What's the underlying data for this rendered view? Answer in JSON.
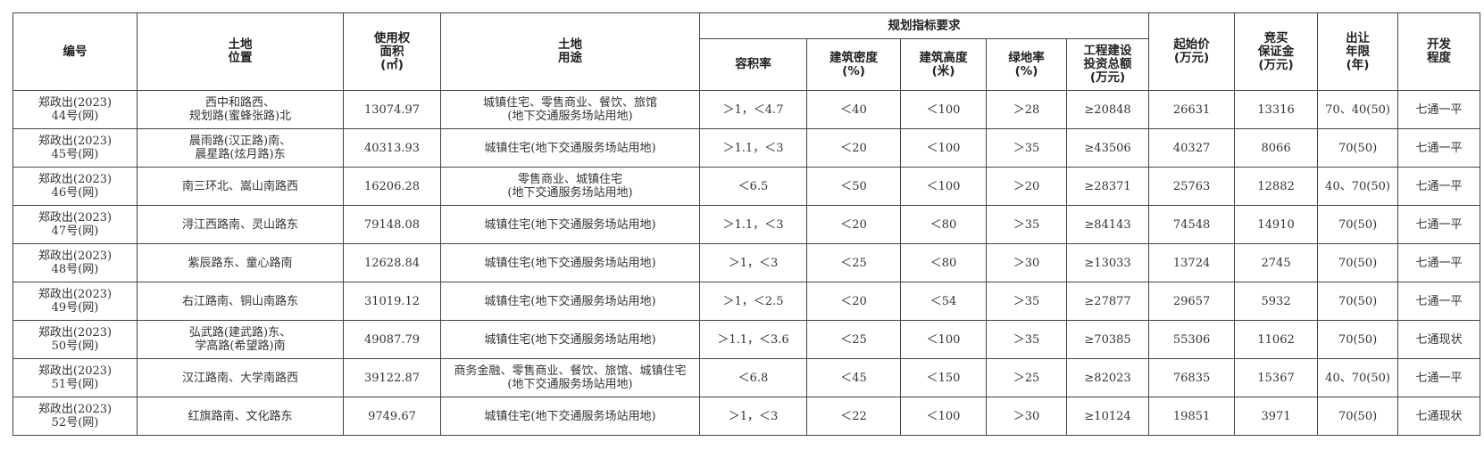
{
  "headers": {
    "id": "编号",
    "location": "土地\n位置",
    "area": "使用权\n面积\n(㎡)",
    "use": "土地\n用途",
    "planning": "规划指标要求",
    "far": "容积率",
    "density": "建筑密度\n(%)",
    "height": "建筑高度\n(米)",
    "green": "绿地率\n(%)",
    "investment": "工程建设\n投资总额\n(万元)",
    "start_price": "起始价\n(万元)",
    "deposit": "竞买\n保证金\n(万元)",
    "term": "出让\n年限\n(年)",
    "development": "开发\n程度"
  },
  "rows": [
    {
      "id": "郑政出(2023)\n44号(网)",
      "location": "西中和路西、\n规划路(蜜蜂张路)北",
      "area": "13074.97",
      "use": "城镇住宅、零售商业、餐饮、旅馆\n(地下交通服务场站用地)",
      "far": "＞1，＜4.7",
      "density": "＜40",
      "height": "＜100",
      "green": "＞28",
      "investment": "≥20848",
      "start_price": "26631",
      "deposit": "13316",
      "term": "70、40(50)",
      "development": "七通一平"
    },
    {
      "id": "郑政出(2023)\n45号(网)",
      "location": "晨雨路(汉正路)南、\n晨星路(炫月路)东",
      "area": "40313.93",
      "use": "城镇住宅(地下交通服务场站用地)",
      "far": "＞1.1，＜3",
      "density": "＜20",
      "height": "＜100",
      "green": "＞35",
      "investment": "≥43506",
      "start_price": "40327",
      "deposit": "8066",
      "term": "70(50)",
      "development": "七通一平"
    },
    {
      "id": "郑政出(2023)\n46号(网)",
      "location": "南三环北、嵩山南路西",
      "area": "16206.28",
      "use": "零售商业、城镇住宅\n(地下交通服务场站用地)",
      "far": "＜6.5",
      "density": "＜50",
      "height": "＜100",
      "green": "＞20",
      "investment": "≥28371",
      "start_price": "25763",
      "deposit": "12882",
      "term": "40、70(50)",
      "development": "七通一平"
    },
    {
      "id": "郑政出(2023)\n47号(网)",
      "location": "浔江西路南、灵山路东",
      "area": "79148.08",
      "use": "城镇住宅(地下交通服务场站用地)",
      "far": "＞1.1，＜3",
      "density": "＜20",
      "height": "＜80",
      "green": "＞35",
      "investment": "≥84143",
      "start_price": "74548",
      "deposit": "14910",
      "term": "70(50)",
      "development": "七通一平"
    },
    {
      "id": "郑政出(2023)\n48号(网)",
      "location": "紫辰路东、童心路南",
      "area": "12628.84",
      "use": "城镇住宅(地下交通服务场站用地)",
      "far": "＞1，＜3",
      "density": "＜25",
      "height": "＜80",
      "green": "＞30",
      "investment": "≥13033",
      "start_price": "13724",
      "deposit": "2745",
      "term": "70(50)",
      "development": "七通一平"
    },
    {
      "id": "郑政出(2023)\n49号(网)",
      "location": "右江路南、铜山南路东",
      "area": "31019.12",
      "use": "城镇住宅(地下交通服务场站用地)",
      "far": "＞1，＜2.5",
      "density": "＜20",
      "height": "＜54",
      "green": "＞35",
      "investment": "≥27877",
      "start_price": "29657",
      "deposit": "5932",
      "term": "70(50)",
      "development": "七通一平"
    },
    {
      "id": "郑政出(2023)\n50号(网)",
      "location": "弘武路(建武路)东、\n学高路(希望路)南",
      "area": "49087.79",
      "use": "城镇住宅(地下交通服务场站用地)",
      "far": "＞1.1，＜3.6",
      "density": "＜25",
      "height": "＜100",
      "green": "＞35",
      "investment": "≥70385",
      "start_price": "55306",
      "deposit": "11062",
      "term": "70(50)",
      "development": "七通现状"
    },
    {
      "id": "郑政出(2023)\n51号(网)",
      "location": "汉江路南、大学南路西",
      "area": "39122.87",
      "use": "商务金融、零售商业、餐饮、旅馆、城镇住宅\n(地下交通服务场站用地)",
      "far": "＜6.8",
      "density": "＜45",
      "height": "＜150",
      "green": "＞25",
      "investment": "≥82023",
      "start_price": "76835",
      "deposit": "15367",
      "term": "40、70(50)",
      "development": "七通一平"
    },
    {
      "id": "郑政出(2023)\n52号(网)",
      "location": "红旗路南、文化路东",
      "area": "9749.67",
      "use": "城镇住宅(地下交通服务场站用地)",
      "far": "＞1，＜3",
      "density": "＜22",
      "height": "＜100",
      "green": "＞30",
      "investment": "≥10124",
      "start_price": "19851",
      "deposit": "3971",
      "term": "70(50)",
      "development": "七通现状"
    }
  ]
}
